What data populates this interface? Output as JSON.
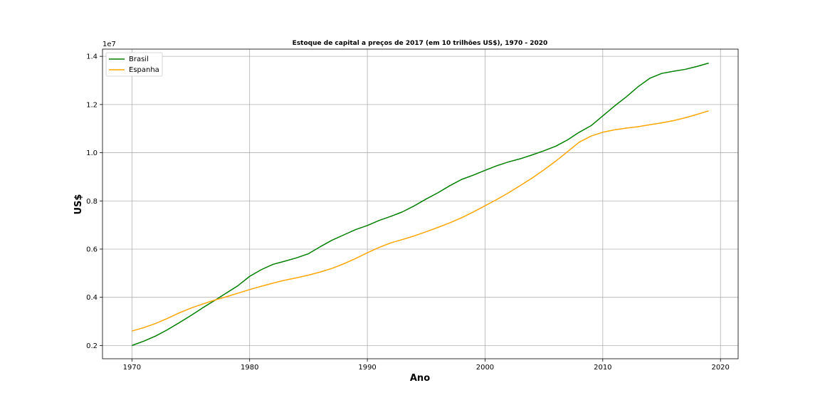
{
  "chart_data": {
    "type": "line",
    "title": "Estoque de capital a preços de 2017 (em 10 trilhões US$), 1970 - 2020",
    "xlabel": "Ano",
    "ylabel": "US$",
    "y_offset_text": "1e7",
    "xlim": [
      1967.5,
      2021.5
    ],
    "ylim": [
      1450000,
      14300000
    ],
    "x_ticks": [
      1970,
      1980,
      1990,
      2000,
      2010,
      2020
    ],
    "x_tick_labels": [
      "1970",
      "1980",
      "1990",
      "2000",
      "2010",
      "2020"
    ],
    "y_ticks": [
      2000000,
      4000000,
      6000000,
      8000000,
      10000000,
      12000000,
      14000000
    ],
    "y_tick_labels": [
      "0.2",
      "0.4",
      "0.6",
      "0.8",
      "1.0",
      "1.2",
      "1.4"
    ],
    "grid": true,
    "legend_position": "upper-left",
    "x": [
      1970,
      1971,
      1972,
      1973,
      1974,
      1975,
      1976,
      1977,
      1978,
      1979,
      1980,
      1981,
      1982,
      1983,
      1984,
      1985,
      1986,
      1987,
      1988,
      1989,
      1990,
      1991,
      1992,
      1993,
      1994,
      1995,
      1996,
      1997,
      1998,
      1999,
      2000,
      2001,
      2002,
      2003,
      2004,
      2005,
      2006,
      2007,
      2008,
      2009,
      2010,
      2011,
      2012,
      2013,
      2014,
      2015,
      2016,
      2017,
      2018,
      2019
    ],
    "series": [
      {
        "name": "Brasil",
        "color": "#008000",
        "values": [
          2000000,
          2180000,
          2390000,
          2650000,
          2940000,
          3240000,
          3560000,
          3860000,
          4170000,
          4480000,
          4870000,
          5150000,
          5370000,
          5500000,
          5640000,
          5810000,
          6100000,
          6370000,
          6590000,
          6810000,
          6980000,
          7190000,
          7360000,
          7550000,
          7800000,
          8080000,
          8340000,
          8630000,
          8890000,
          9070000,
          9270000,
          9460000,
          9620000,
          9750000,
          9910000,
          10080000,
          10270000,
          10530000,
          10850000,
          11120000,
          11530000,
          11940000,
          12320000,
          12740000,
          13090000,
          13290000,
          13380000,
          13460000,
          13580000,
          13720000
        ],
        "values_note": ""
      },
      {
        "name": "Espanha",
        "color": "#FFA500",
        "values": [
          2600000,
          2740000,
          2910000,
          3120000,
          3350000,
          3550000,
          3720000,
          3880000,
          4020000,
          4170000,
          4320000,
          4460000,
          4590000,
          4710000,
          4810000,
          4920000,
          5050000,
          5200000,
          5390000,
          5610000,
          5850000,
          6070000,
          6260000,
          6400000,
          6550000,
          6720000,
          6900000,
          7090000,
          7300000,
          7540000,
          7800000,
          8060000,
          8340000,
          8640000,
          8950000,
          9290000,
          9650000,
          10040000,
          10440000,
          10690000,
          10850000,
          10950000,
          11020000,
          11080000,
          11160000,
          11240000,
          11330000,
          11450000,
          11590000,
          11740000
        ]
      }
    ]
  }
}
